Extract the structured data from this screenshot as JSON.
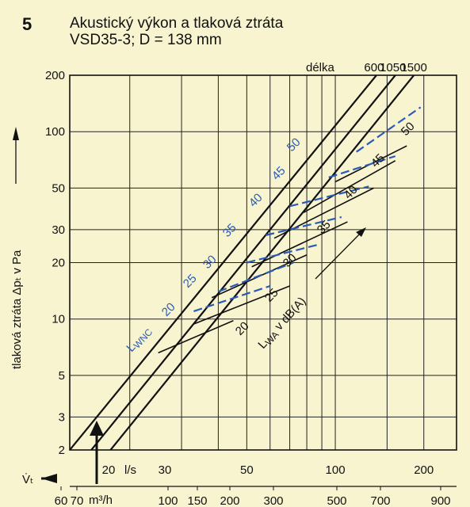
{
  "chart_data": {
    "type": "line",
    "figure_number": "5",
    "title": "Akustický výkon a tlaková ztráta",
    "subtitle": "VSD35-3; D = 138 mm",
    "y_axis": {
      "label": "tlaková ztráta  Δpₜ v Pa",
      "scale": "log",
      "range": [
        2,
        200
      ],
      "ticks": [
        "2",
        "3",
        "5",
        "10",
        "20",
        "30",
        "50",
        "100",
        "200"
      ]
    },
    "x_axis_ls": {
      "symbol": "V̇ₜ",
      "unit": "l/s",
      "scale": "log",
      "ticks": [
        {
          "label": "20",
          "value": 20
        },
        {
          "label": "30",
          "value": 30
        },
        {
          "label": "50",
          "value": 50
        },
        {
          "label": "100",
          "value": 100
        },
        {
          "label": "200",
          "value": 200
        }
      ]
    },
    "x_axis_m3h": {
      "unit": "m³/h",
      "ticks": [
        {
          "label": "60",
          "value": 60
        },
        {
          "label": "70",
          "value": 70
        },
        {
          "label": "100",
          "value": 100
        },
        {
          "label": "150",
          "value": 150
        },
        {
          "label": "200",
          "value": 200
        },
        {
          "label": "300",
          "value": 300
        },
        {
          "label": "500",
          "value": 500
        },
        {
          "label": "700",
          "value": 700
        },
        {
          "label": "900",
          "value": 900
        }
      ]
    },
    "length_header": "délka",
    "length_lines": [
      {
        "name": "600",
        "points": [
          [
            12.5,
            2
          ],
          [
            138,
            200
          ]
        ]
      },
      {
        "name": "1050",
        "points": [
          [
            14.8,
            2
          ],
          [
            160,
            200
          ]
        ]
      },
      {
        "name": "1500",
        "points": [
          [
            17.2,
            2
          ],
          [
            185,
            200
          ]
        ]
      }
    ],
    "lwa_label": "L",
    "lwa_sub": "WA",
    "lwa_unit": " v dB(A)",
    "lwa_levels": [
      "20",
      "25",
      "30",
      "35",
      "40",
      "45",
      "50"
    ],
    "lwnc_label": "L",
    "lwnc_sub": "WNC",
    "lwnc_levels": [
      "20",
      "25",
      "30",
      "35",
      "40",
      "45",
      "50"
    ],
    "annotation": "arrow at 3 Pa / 60 m³/h"
  }
}
